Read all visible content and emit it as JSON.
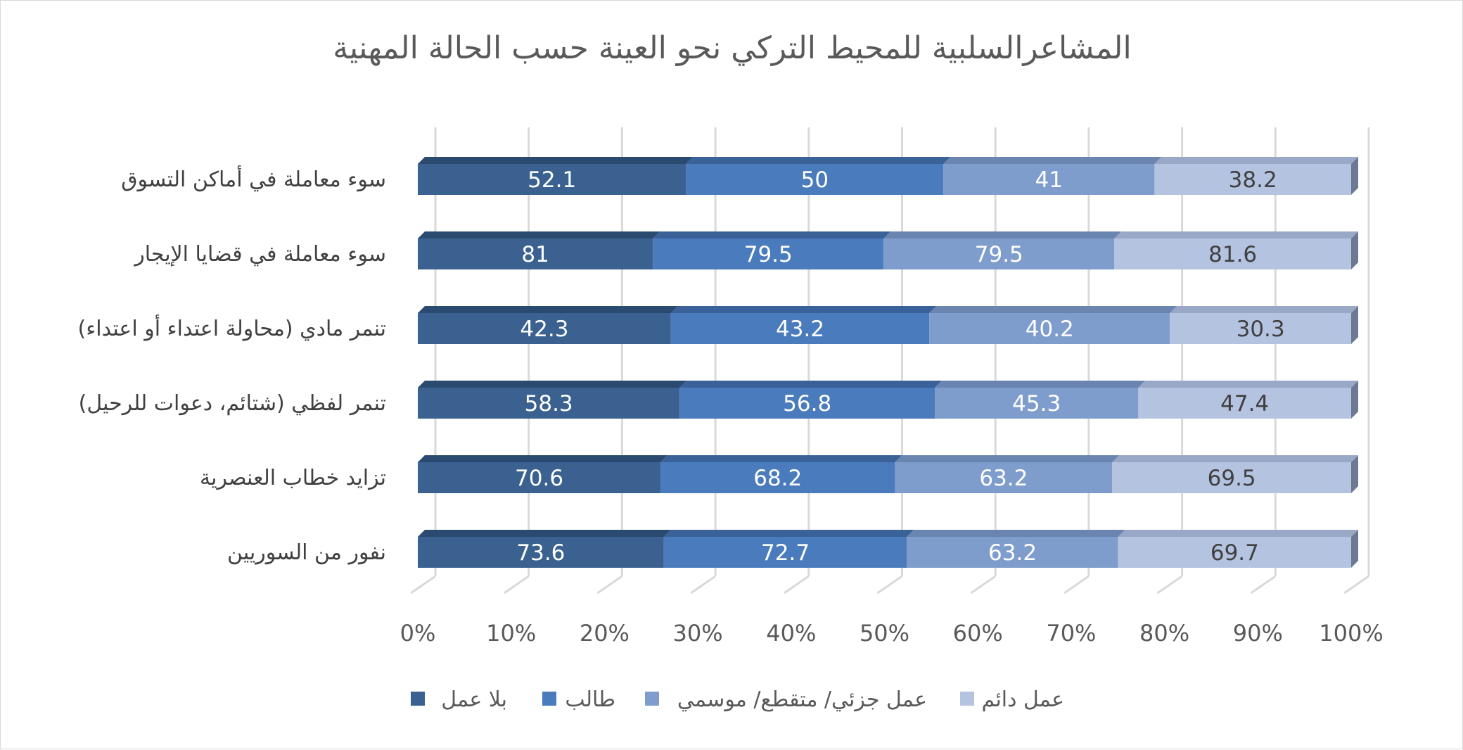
{
  "chart_data": {
    "type": "bar",
    "orientation": "horizontal",
    "stacked": "percent",
    "style": "3d",
    "title": "المشاعرالسلبية للمحيط التركي نحو العينة حسب الحالة المهنية",
    "categories": [
      "سوء معاملة في أماكن التسوق",
      "سوء معاملة في قضايا الإيجار",
      "تنمر مادي (محاولة اعتداء أو اعتداء)",
      "تنمر لفظي (شتائم، دعوات للرحيل)",
      "تزايد خطاب العنصرية",
      "نفور من السوريين"
    ],
    "series": [
      {
        "name": "بلا عمل",
        "color": "#3a6190",
        "top_color": "#2a4a70",
        "label_color": "#ffffff",
        "values": [
          52.1,
          81,
          42.3,
          58.3,
          70.6,
          73.6
        ]
      },
      {
        "name": "طالب",
        "color": "#4a7bbd",
        "top_color": "#3a6299",
        "label_color": "#ffffff",
        "values": [
          50,
          79.5,
          43.2,
          56.8,
          68.2,
          72.7
        ]
      },
      {
        "name": "عمل جزئي/ متقطع/ موسمي",
        "color": "#7f9dcc",
        "top_color": "#6a85b0",
        "label_color": "#ffffff",
        "values": [
          41,
          79.5,
          40.2,
          45.3,
          63.2,
          63.2
        ]
      },
      {
        "name": "عمل دائم",
        "color": "#b4c3e0",
        "top_color": "#98a8c6",
        "label_color": "#404040",
        "values": [
          38.2,
          81.6,
          30.3,
          47.4,
          69.5,
          69.7
        ]
      }
    ],
    "xaxis": {
      "ticks": [
        "0%",
        "10%",
        "20%",
        "30%",
        "40%",
        "50%",
        "60%",
        "70%",
        "80%",
        "90%",
        "100%"
      ],
      "range": [
        0,
        100
      ]
    },
    "grid": true,
    "legend_position": "bottom"
  }
}
